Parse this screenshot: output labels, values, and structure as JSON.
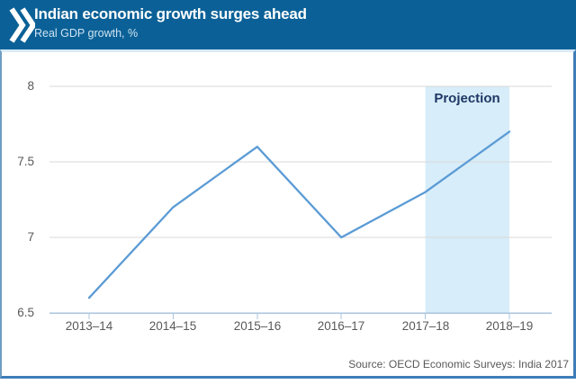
{
  "header": {
    "title": "Indian economic growth surges ahead",
    "subtitle": "Real GDP growth, %",
    "background_color": "#0b6197",
    "logo_icon": "oecd-double-chevron-icon"
  },
  "chart_data": {
    "type": "line",
    "title": "Indian economic growth surges ahead",
    "subtitle": "Real GDP growth, %",
    "categories": [
      "2013–14",
      "2014–15",
      "2015–16",
      "2016–17",
      "2017–18",
      "2018–19"
    ],
    "series": [
      {
        "name": "Real GDP growth, %",
        "values": [
          6.6,
          7.2,
          7.6,
          7.0,
          7.3,
          7.7
        ]
      }
    ],
    "ylim": [
      6.5,
      8
    ],
    "ytick_values": [
      8,
      7.5,
      7,
      6.5
    ],
    "ytick_labels": [
      "8",
      "7.5",
      "7",
      "6.5"
    ],
    "xlabel": "",
    "ylabel": "",
    "grid": "horizontal",
    "legend": "none",
    "line_color": "#5b9bd5",
    "gridline_color": "#d9d9d9",
    "axis_color": "#aac4dd",
    "tick_label_color": "#595959",
    "projection": {
      "label": "Projection",
      "from_category": "2017–18",
      "to_category": "2018–19",
      "band_color": "#d7edf9",
      "label_color": "#1f3864",
      "values": [
        7.3,
        7.7
      ]
    }
  },
  "footer": {
    "source": "Source: OECD Economic Surveys: India 2017"
  }
}
